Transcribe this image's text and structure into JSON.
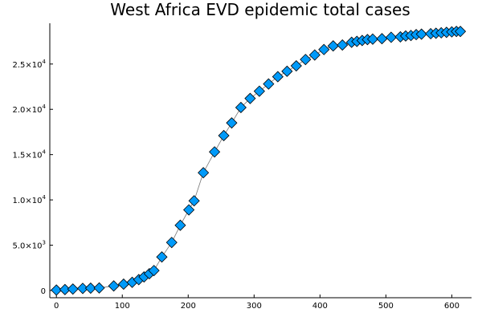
{
  "chart_data": {
    "type": "scatter",
    "title": "West Africa EVD epidemic total cases",
    "xlabel": "",
    "ylabel": "",
    "xlim": [
      -10,
      630
    ],
    "ylim": [
      -800,
      29500
    ],
    "x_ticks": [
      0,
      100,
      200,
      300,
      400,
      500,
      600
    ],
    "x_tick_labels": [
      "0",
      "100",
      "200",
      "300",
      "400",
      "500",
      "600"
    ],
    "y_ticks": [
      0,
      5000,
      10000,
      15000,
      20000,
      25000
    ],
    "y_tick_labels": [
      {
        "mant": "0",
        "exp": ""
      },
      {
        "mant": "5.0×10",
        "exp": "3"
      },
      {
        "mant": "1.0×10",
        "exp": "4"
      },
      {
        "mant": "1.5×10",
        "exp": "4"
      },
      {
        "mant": "2.0×10",
        "exp": "4"
      },
      {
        "mant": "2.5×10",
        "exp": "4"
      }
    ],
    "grid": false,
    "legend": false,
    "colors": {
      "marker": "#009af9",
      "line": "#555555"
    },
    "series": [
      {
        "marker": "diamond",
        "points": [
          [
            0,
            50
          ],
          [
            13,
            100
          ],
          [
            25,
            160
          ],
          [
            40,
            230
          ],
          [
            52,
            260
          ],
          [
            65,
            280
          ],
          [
            87,
            500
          ],
          [
            102,
            700
          ],
          [
            115,
            900
          ],
          [
            125,
            1200
          ],
          [
            133,
            1500
          ],
          [
            141,
            1850
          ],
          [
            148,
            2200
          ],
          [
            160,
            3700
          ],
          [
            175,
            5300
          ],
          [
            188,
            7200
          ],
          [
            201,
            8900
          ],
          [
            209,
            9900
          ],
          [
            223,
            13000
          ],
          [
            240,
            15300
          ],
          [
            254,
            17100
          ],
          [
            266,
            18500
          ],
          [
            280,
            20200
          ],
          [
            294,
            21200
          ],
          [
            308,
            22000
          ],
          [
            322,
            22800
          ],
          [
            336,
            23600
          ],
          [
            350,
            24200
          ],
          [
            364,
            24800
          ],
          [
            378,
            25500
          ],
          [
            392,
            26000
          ],
          [
            406,
            26600
          ],
          [
            420,
            27000
          ],
          [
            434,
            27100
          ],
          [
            448,
            27400
          ],
          [
            456,
            27500
          ],
          [
            464,
            27600
          ],
          [
            472,
            27700
          ],
          [
            480,
            27750
          ],
          [
            494,
            27800
          ],
          [
            508,
            27950
          ],
          [
            522,
            28000
          ],
          [
            530,
            28100
          ],
          [
            538,
            28150
          ],
          [
            546,
            28250
          ],
          [
            554,
            28300
          ],
          [
            568,
            28350
          ],
          [
            576,
            28400
          ],
          [
            584,
            28450
          ],
          [
            592,
            28500
          ],
          [
            600,
            28550
          ],
          [
            607,
            28600
          ],
          [
            613,
            28600
          ]
        ]
      }
    ]
  }
}
